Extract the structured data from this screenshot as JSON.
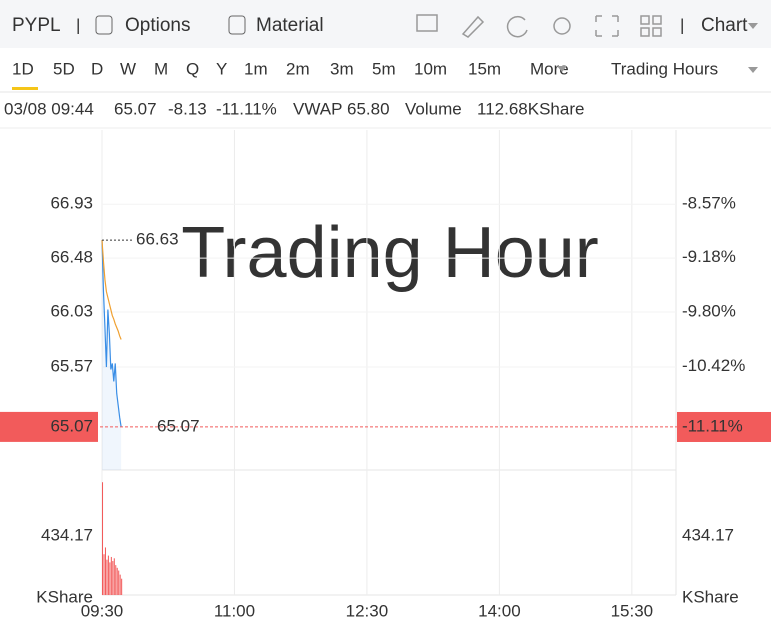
{
  "toolbar": {
    "symbol": "PYPL",
    "tabs": [
      "Options",
      "Material"
    ],
    "chart_menu": "Chart"
  },
  "timeframes": {
    "items": [
      "1D",
      "5D",
      "D",
      "W",
      "M",
      "Q",
      "Y",
      "1m",
      "2m",
      "3m",
      "5m",
      "10m",
      "15m"
    ],
    "more": "More",
    "session": "Trading Hours"
  },
  "quote": {
    "time": "03/08 09:44",
    "price": "65.07",
    "change": "-8.13",
    "change_pct": "-11.11%",
    "vwap_label": "VWAP",
    "vwap": "65.80",
    "volume_label": "Volume",
    "volume": "112.68KShare"
  },
  "chart_data": {
    "type": "line",
    "watermark": "Trading Hour",
    "xlim": [
      0,
      390
    ],
    "xticks": [
      {
        "value": 0,
        "label": "09:30"
      },
      {
        "value": 90,
        "label": "11:00"
      },
      {
        "value": 180,
        "label": "12:30"
      },
      {
        "value": 270,
        "label": "14:00"
      },
      {
        "value": 360,
        "label": "15:30"
      }
    ],
    "x": [
      0,
      1,
      2,
      3,
      4,
      5,
      6,
      7,
      8,
      9,
      10,
      11,
      12,
      13
    ],
    "series": [
      {
        "color": "#3a8ee6",
        "values": [
          66.63,
          66.2,
          65.9,
          65.57,
          66.05,
          65.85,
          65.55,
          65.6,
          65.45,
          65.6,
          65.35,
          65.25,
          65.15,
          65.07
        ]
      },
      {
        "name": "VWAP",
        "color": "#f0a030",
        "values": [
          66.63,
          66.45,
          66.3,
          66.2,
          66.15,
          66.1,
          66.05,
          66.0,
          65.97,
          65.93,
          65.9,
          65.87,
          65.83,
          65.8
        ]
      }
    ],
    "ylim": [
      64.71,
      67.55
    ],
    "yticks": [
      66.93,
      66.48,
      66.03,
      65.57
    ],
    "y2lim": [
      -11.6,
      -7.727
    ],
    "y2ticks": [
      {
        "value": -8.57,
        "label": "-8.57%"
      },
      {
        "value": -9.18,
        "label": "-9.18%"
      },
      {
        "value": -9.8,
        "label": "-9.80%"
      },
      {
        "value": -10.42,
        "label": "-10.42%"
      }
    ],
    "high_price": 66.63,
    "last_price": 65.07,
    "last_change": {
      "value": -11.11,
      "label": "-11.11%"
    },
    "last_color": "#f25b5b",
    "volume": {
      "unit": "KShare",
      "color": "#f25b5b",
      "ylim": [
        0,
        920
      ],
      "yticks": [
        434.17
      ],
      "values": [
        830,
        300,
        350,
        260,
        290,
        240,
        280,
        250,
        270,
        220,
        200,
        180,
        150,
        120
      ]
    }
  }
}
